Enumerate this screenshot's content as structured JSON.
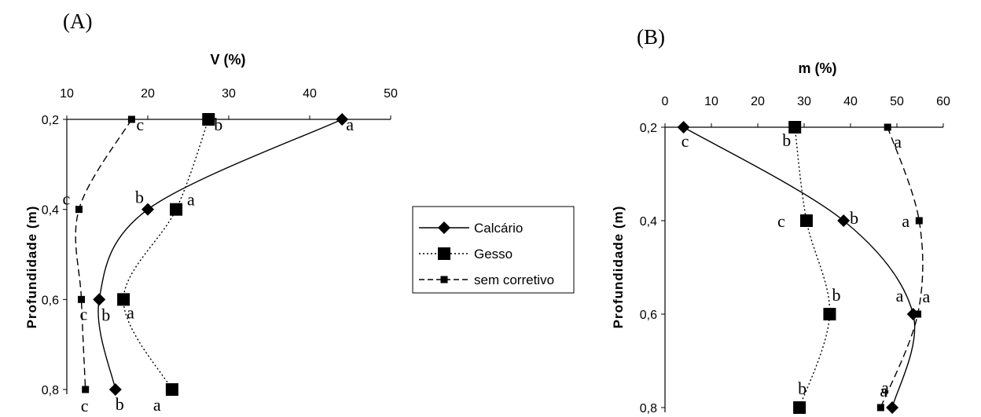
{
  "chart_data": [
    {
      "panel_label": "(A)",
      "type": "line",
      "title": "",
      "xlabel": "V (%)",
      "ylabel": "Profundidade (m)",
      "xlim": [
        10,
        50
      ],
      "ylim": [
        0.2,
        0.8
      ],
      "y_inverted": true,
      "x_ticks": [
        "10",
        "20",
        "30",
        "40",
        "50"
      ],
      "y_ticks": [
        "0,2",
        "0,4",
        "0,6",
        "0,8"
      ],
      "series": [
        {
          "name": "Calcário",
          "style": "solid",
          "marker": "diamond",
          "color": "#000000",
          "points": [
            [
              44.0,
              0.2
            ],
            [
              20.0,
              0.4
            ],
            [
              14.0,
              0.6
            ],
            [
              16.0,
              0.8
            ]
          ],
          "labels": [
            "a",
            "b",
            "b",
            "b"
          ]
        },
        {
          "name": "Gesso",
          "style": "dotted",
          "marker": "square-large",
          "color": "#000000",
          "points": [
            [
              27.5,
              0.2
            ],
            [
              23.5,
              0.4
            ],
            [
              17.0,
              0.6
            ],
            [
              23.0,
              0.8
            ]
          ],
          "labels": [
            "b",
            "a",
            "a",
            "a"
          ]
        },
        {
          "name": "sem corretivo",
          "style": "dashed",
          "marker": "square-small",
          "color": "#000000",
          "points": [
            [
              18.0,
              0.2
            ],
            [
              11.5,
              0.4
            ],
            [
              11.8,
              0.6
            ],
            [
              12.3,
              0.8
            ]
          ],
          "labels": [
            "c",
            "c",
            "c",
            "c"
          ]
        }
      ]
    },
    {
      "panel_label": "(B)",
      "type": "line",
      "title": "",
      "xlabel": "m (%)",
      "ylabel": "Profundidade (m)",
      "xlim": [
        0,
        60
      ],
      "ylim": [
        0.2,
        0.8
      ],
      "y_inverted": true,
      "x_ticks": [
        "0",
        "10",
        "20",
        "30",
        "40",
        "50",
        "60"
      ],
      "y_ticks": [
        "0,2",
        "0,4",
        "0,6",
        "0,8"
      ],
      "series": [
        {
          "name": "Calcário",
          "style": "solid",
          "marker": "diamond",
          "color": "#000000",
          "points": [
            [
              4.0,
              0.2
            ],
            [
              38.5,
              0.4
            ],
            [
              53.5,
              0.6
            ],
            [
              49.0,
              0.8
            ]
          ],
          "labels": [
            "c",
            "b",
            "a",
            "a"
          ]
        },
        {
          "name": "Gesso",
          "style": "dotted",
          "marker": "square-large",
          "color": "#000000",
          "points": [
            [
              28.0,
              0.2
            ],
            [
              30.5,
              0.4
            ],
            [
              35.5,
              0.6
            ],
            [
              29.0,
              0.8
            ]
          ],
          "labels": [
            "b",
            "c",
            "b",
            "b"
          ]
        },
        {
          "name": "sem corretivo",
          "style": "dashed",
          "marker": "square-small",
          "color": "#000000",
          "points": [
            [
              48.0,
              0.2
            ],
            [
              54.8,
              0.4
            ],
            [
              54.5,
              0.6
            ],
            [
              46.5,
              0.8
            ]
          ],
          "labels": [
            "a",
            "a",
            "a",
            "a"
          ]
        }
      ]
    }
  ],
  "legend": {
    "entries": [
      "Calcário",
      "Gesso",
      "sem corretivo"
    ]
  }
}
